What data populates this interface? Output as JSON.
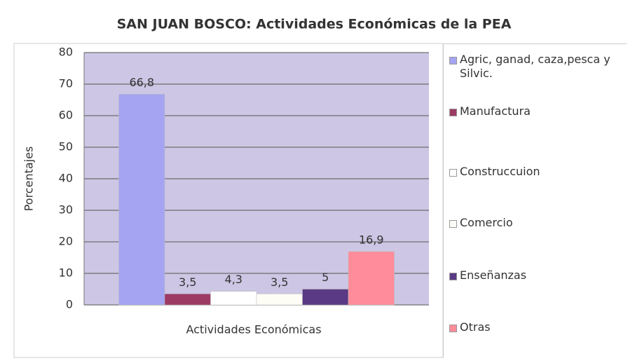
{
  "chart_data": {
    "type": "bar",
    "title": "SAN JUAN BOSCO: Actividades Económicas de la PEA",
    "ylabel": "Porcentajes",
    "xlabel": "Actividades Económicas",
    "categories": [
      null
    ],
    "series": [
      {
        "name": "Agric, ganad, caza,pesca y Silvic.",
        "color": "#a4a4f2",
        "values": [
          66.8
        ],
        "value_labels": [
          "66,8"
        ]
      },
      {
        "name": "Manufactura",
        "color": "#9c3a64",
        "values": [
          3.5
        ],
        "value_labels": [
          "3,5"
        ]
      },
      {
        "name": "Construccuion",
        "color": "#ffffff",
        "values": [
          4.3
        ],
        "value_labels": [
          "4,3"
        ]
      },
      {
        "name": "Comercio",
        "color": "#fdfdf6",
        "values": [
          3.5
        ],
        "value_labels": [
          "3,5"
        ]
      },
      {
        "name": "Enseñanzas",
        "color": "#5a3a84",
        "values": [
          5
        ]
      },
      {
        "name": "Otras",
        "color": "#ff8c9a",
        "values": [
          16.9
        ],
        "value_labels": [
          "16,9"
        ]
      }
    ],
    "ylim": [
      0,
      80
    ],
    "yticks": [
      0,
      10,
      20,
      30,
      40,
      50,
      60,
      70,
      80
    ],
    "grid": true,
    "legend": "right"
  }
}
